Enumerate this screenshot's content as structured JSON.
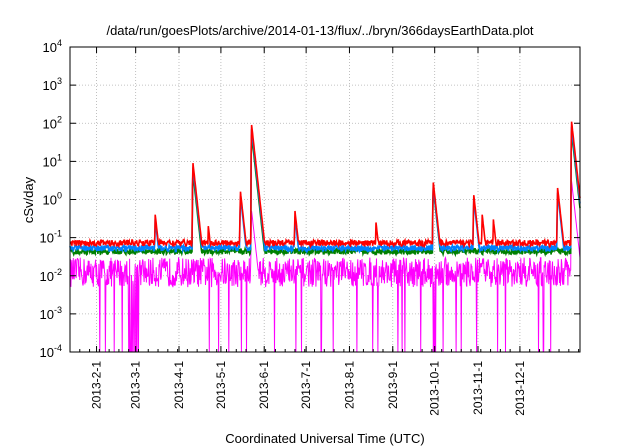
{
  "chart_data": {
    "type": "line",
    "title": "/data/run/goesPlots/archive/2014-01-13/flux/../bryn/366daysEarthData.plot",
    "xlabel": "Coordinated Universal Time (UTC)",
    "ylabel": "cSv/day",
    "yscale": "log",
    "ylim": [
      0.0001,
      10000
    ],
    "y_ticks": [
      {
        "value": 0.0001,
        "base": "10",
        "exp": "-4"
      },
      {
        "value": 0.001,
        "base": "10",
        "exp": "-3"
      },
      {
        "value": 0.01,
        "base": "10",
        "exp": "-2"
      },
      {
        "value": 0.1,
        "base": "10",
        "exp": "-1"
      },
      {
        "value": 1,
        "base": "10",
        "exp": "0"
      },
      {
        "value": 10,
        "base": "10",
        "exp": "1"
      },
      {
        "value": 100,
        "base": "10",
        "exp": "2"
      },
      {
        "value": 1000,
        "base": "10",
        "exp": "3"
      },
      {
        "value": 10000,
        "base": "10",
        "exp": "4"
      }
    ],
    "xlim": [
      "2013-01-13",
      "2014-01-13"
    ],
    "x_ticks": [
      "2013-2-1",
      "2013-3-1",
      "2013-4-1",
      "2013-5-1",
      "2013-6-1",
      "2013-7-1",
      "2013-8-1",
      "2013-9-1",
      "2013-10-1",
      "2013-11-1",
      "2013-12-1"
    ],
    "x_tick_dates": [
      "2013-02-01",
      "2013-03-01",
      "2013-04-01",
      "2013-05-01",
      "2013-06-01",
      "2013-07-01",
      "2013-08-01",
      "2013-09-01",
      "2013-10-01",
      "2013-11-01",
      "2013-12-01"
    ],
    "grid": true,
    "series": [
      {
        "color": "#ff0000",
        "baseline": 0.075,
        "peaks": [
          {
            "date": "2013-03-15",
            "value": 0.4
          },
          {
            "date": "2013-04-11",
            "value": 9
          },
          {
            "date": "2013-04-22",
            "value": 0.2
          },
          {
            "date": "2013-05-15",
            "value": 1.6
          },
          {
            "date": "2013-05-23",
            "value": 90
          },
          {
            "date": "2013-06-23",
            "value": 0.5
          },
          {
            "date": "2013-08-20",
            "value": 0.25
          },
          {
            "date": "2013-09-30",
            "value": 2.8
          },
          {
            "date": "2013-10-29",
            "value": 1.3
          },
          {
            "date": "2013-11-04",
            "value": 0.4
          },
          {
            "date": "2013-11-12",
            "value": 0.3
          },
          {
            "date": "2013-12-28",
            "value": 2
          },
          {
            "date": "2014-01-07",
            "value": 110
          }
        ]
      },
      {
        "color": "#008000",
        "baseline": 0.045,
        "peaks": [
          {
            "date": "2013-04-11",
            "value": 5
          },
          {
            "date": "2013-05-23",
            "value": 50
          },
          {
            "date": "2013-09-30",
            "value": 2
          },
          {
            "date": "2014-01-07",
            "value": 60
          }
        ]
      },
      {
        "color": "#0080ff",
        "baseline": 0.055,
        "peaks": [
          {
            "date": "2013-03-15",
            "value": 0.3
          },
          {
            "date": "2013-04-11",
            "value": 7
          },
          {
            "date": "2013-05-15",
            "value": 1.2
          },
          {
            "date": "2013-05-23",
            "value": 70
          },
          {
            "date": "2013-06-23",
            "value": 0.35
          },
          {
            "date": "2013-09-30",
            "value": 2.2
          },
          {
            "date": "2013-10-29",
            "value": 1
          },
          {
            "date": "2013-12-28",
            "value": 1.5
          },
          {
            "date": "2014-01-07",
            "value": 80
          }
        ]
      },
      {
        "color": "#ff00ff",
        "baseline_range": [
          0.005,
          0.03
        ],
        "dropouts": [
          {
            "from": "2013-02-24",
            "to": "2013-03-03",
            "value": 0.0001
          },
          {
            "from": "2013-09-30",
            "to": "2013-10-02",
            "value": 0.0001
          }
        ],
        "peaks": [
          {
            "date": "2013-05-23",
            "value": 0.5
          },
          {
            "date": "2014-01-07",
            "value": 3
          }
        ]
      }
    ]
  }
}
